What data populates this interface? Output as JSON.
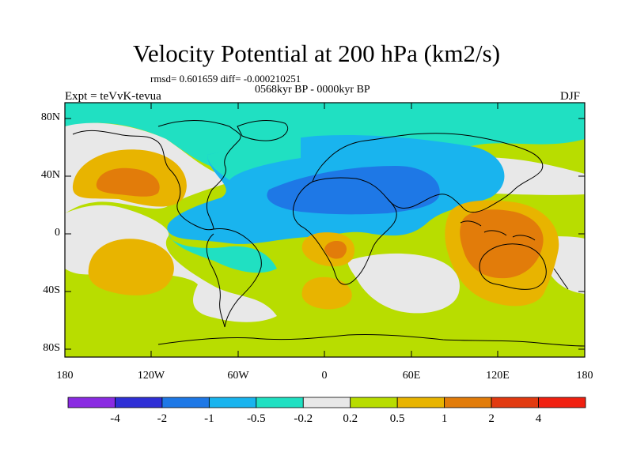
{
  "title": "Velocity Potential at 200 hPa (km2/s)",
  "stats": "rmsd= 0.601659 diff= -0.000210251",
  "period": "0568kyr BP - 0000kyr BP",
  "experiment": "Expt = teVvK-tevua",
  "season": "DJF",
  "lat_labels": [
    "80N",
    "40N",
    "0",
    "40S",
    "80S"
  ],
  "lon_labels": [
    "180",
    "120W",
    "60W",
    "0",
    "60E",
    "120E",
    "180"
  ],
  "colorbar": {
    "labels": [
      "-4",
      "-2",
      "-1",
      "-0.5",
      "-0.2",
      "0.2",
      "0.5",
      "1",
      "2",
      "4"
    ],
    "colors": [
      "#8a2be2",
      "#2f2fd6",
      "#1e78e6",
      "#19b4ee",
      "#20e0c2",
      "#e8e8e8",
      "#b8dd00",
      "#e8b400",
      "#e27c0a",
      "#e23a10",
      "#f02010"
    ]
  },
  "map_colors": {
    "neutral": "#e8e8e8",
    "pos1": "#b8dd00",
    "pos2": "#e8b400",
    "pos3": "#e27c0a",
    "neg1": "#20e0c2",
    "neg2": "#19b4ee",
    "neg3": "#1e78e6"
  }
}
